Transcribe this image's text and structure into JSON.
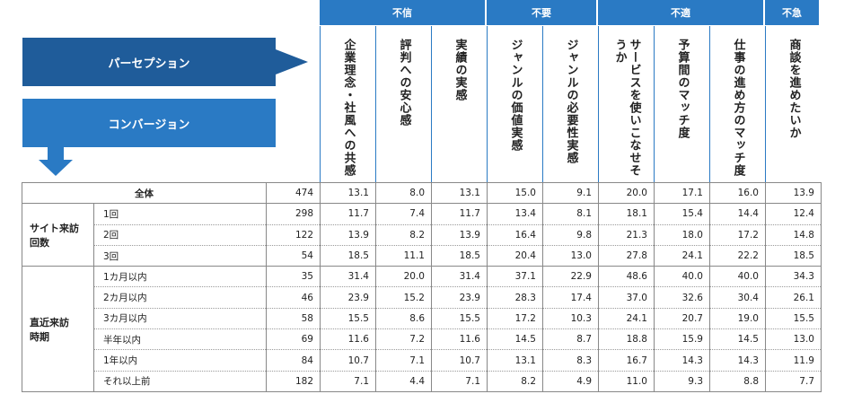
{
  "chart_data": {
    "type": "table",
    "flow_labels": {
      "perception": "パーセプション",
      "conversion": "コンバージョン"
    },
    "categories": [
      {
        "label": "不信",
        "span": 3
      },
      {
        "label": "不要",
        "span": 2
      },
      {
        "label": "不適",
        "span": 3
      },
      {
        "label": "不急",
        "span": 1
      }
    ],
    "columns": [
      "企業理念・社風への共感",
      "評判への安心感",
      "実績の実感",
      "ジャンルの価値実感",
      "ジャンルの必要性実感",
      "サービスを使いこなせそうか",
      "予算間のマッチ度",
      "仕事の進め方のマッチ度",
      "商談を進めたいか"
    ],
    "rows": [
      {
        "group": "",
        "label": "全体",
        "n": "474",
        "values": [
          "13.1",
          "8.0",
          "13.1",
          "15.0",
          "9.1",
          "20.0",
          "17.1",
          "16.0",
          "13.9"
        ]
      },
      {
        "group": "サイト来訪回数",
        "label": "1回",
        "n": "298",
        "values": [
          "11.7",
          "7.4",
          "11.7",
          "13.4",
          "8.1",
          "18.1",
          "15.4",
          "14.4",
          "12.4"
        ]
      },
      {
        "group": "サイト来訪回数",
        "label": "2回",
        "n": "122",
        "values": [
          "13.9",
          "8.2",
          "13.9",
          "16.4",
          "9.8",
          "21.3",
          "18.0",
          "17.2",
          "14.8"
        ]
      },
      {
        "group": "サイト来訪回数",
        "label": "3回",
        "n": "54",
        "values": [
          "18.5",
          "11.1",
          "18.5",
          "20.4",
          "13.0",
          "27.8",
          "24.1",
          "22.2",
          "18.5"
        ]
      },
      {
        "group": "直近来訪時期",
        "label": "1カ月以内",
        "n": "35",
        "values": [
          "31.4",
          "20.0",
          "31.4",
          "37.1",
          "22.9",
          "48.6",
          "40.0",
          "40.0",
          "34.3"
        ]
      },
      {
        "group": "直近来訪時期",
        "label": "2カ月以内",
        "n": "46",
        "values": [
          "23.9",
          "15.2",
          "23.9",
          "28.3",
          "17.4",
          "37.0",
          "32.6",
          "30.4",
          "26.1"
        ]
      },
      {
        "group": "直近来訪時期",
        "label": "3カ月以内",
        "n": "58",
        "values": [
          "15.5",
          "8.6",
          "15.5",
          "17.2",
          "10.3",
          "24.1",
          "20.7",
          "19.0",
          "15.5"
        ]
      },
      {
        "group": "直近来訪時期",
        "label": "半年以内",
        "n": "69",
        "values": [
          "11.6",
          "7.2",
          "11.6",
          "14.5",
          "8.7",
          "18.8",
          "15.9",
          "14.5",
          "13.0"
        ]
      },
      {
        "group": "直近来訪時期",
        "label": "1年以内",
        "n": "84",
        "values": [
          "10.7",
          "7.1",
          "10.7",
          "13.1",
          "8.3",
          "16.7",
          "14.3",
          "14.3",
          "11.9"
        ]
      },
      {
        "group": "直近来訪時期",
        "label": "それ以上前",
        "n": "182",
        "values": [
          "7.1",
          "4.4",
          "7.1",
          "8.2",
          "4.9",
          "11.0",
          "9.3",
          "8.8",
          "7.7"
        ]
      }
    ]
  },
  "colors": {
    "header_blue": "#2a7ac4",
    "perception_blue": "#1f5c9a"
  },
  "groups": {
    "visits": "サイト来訪\n回数",
    "recent": "直近来訪\n時期"
  }
}
